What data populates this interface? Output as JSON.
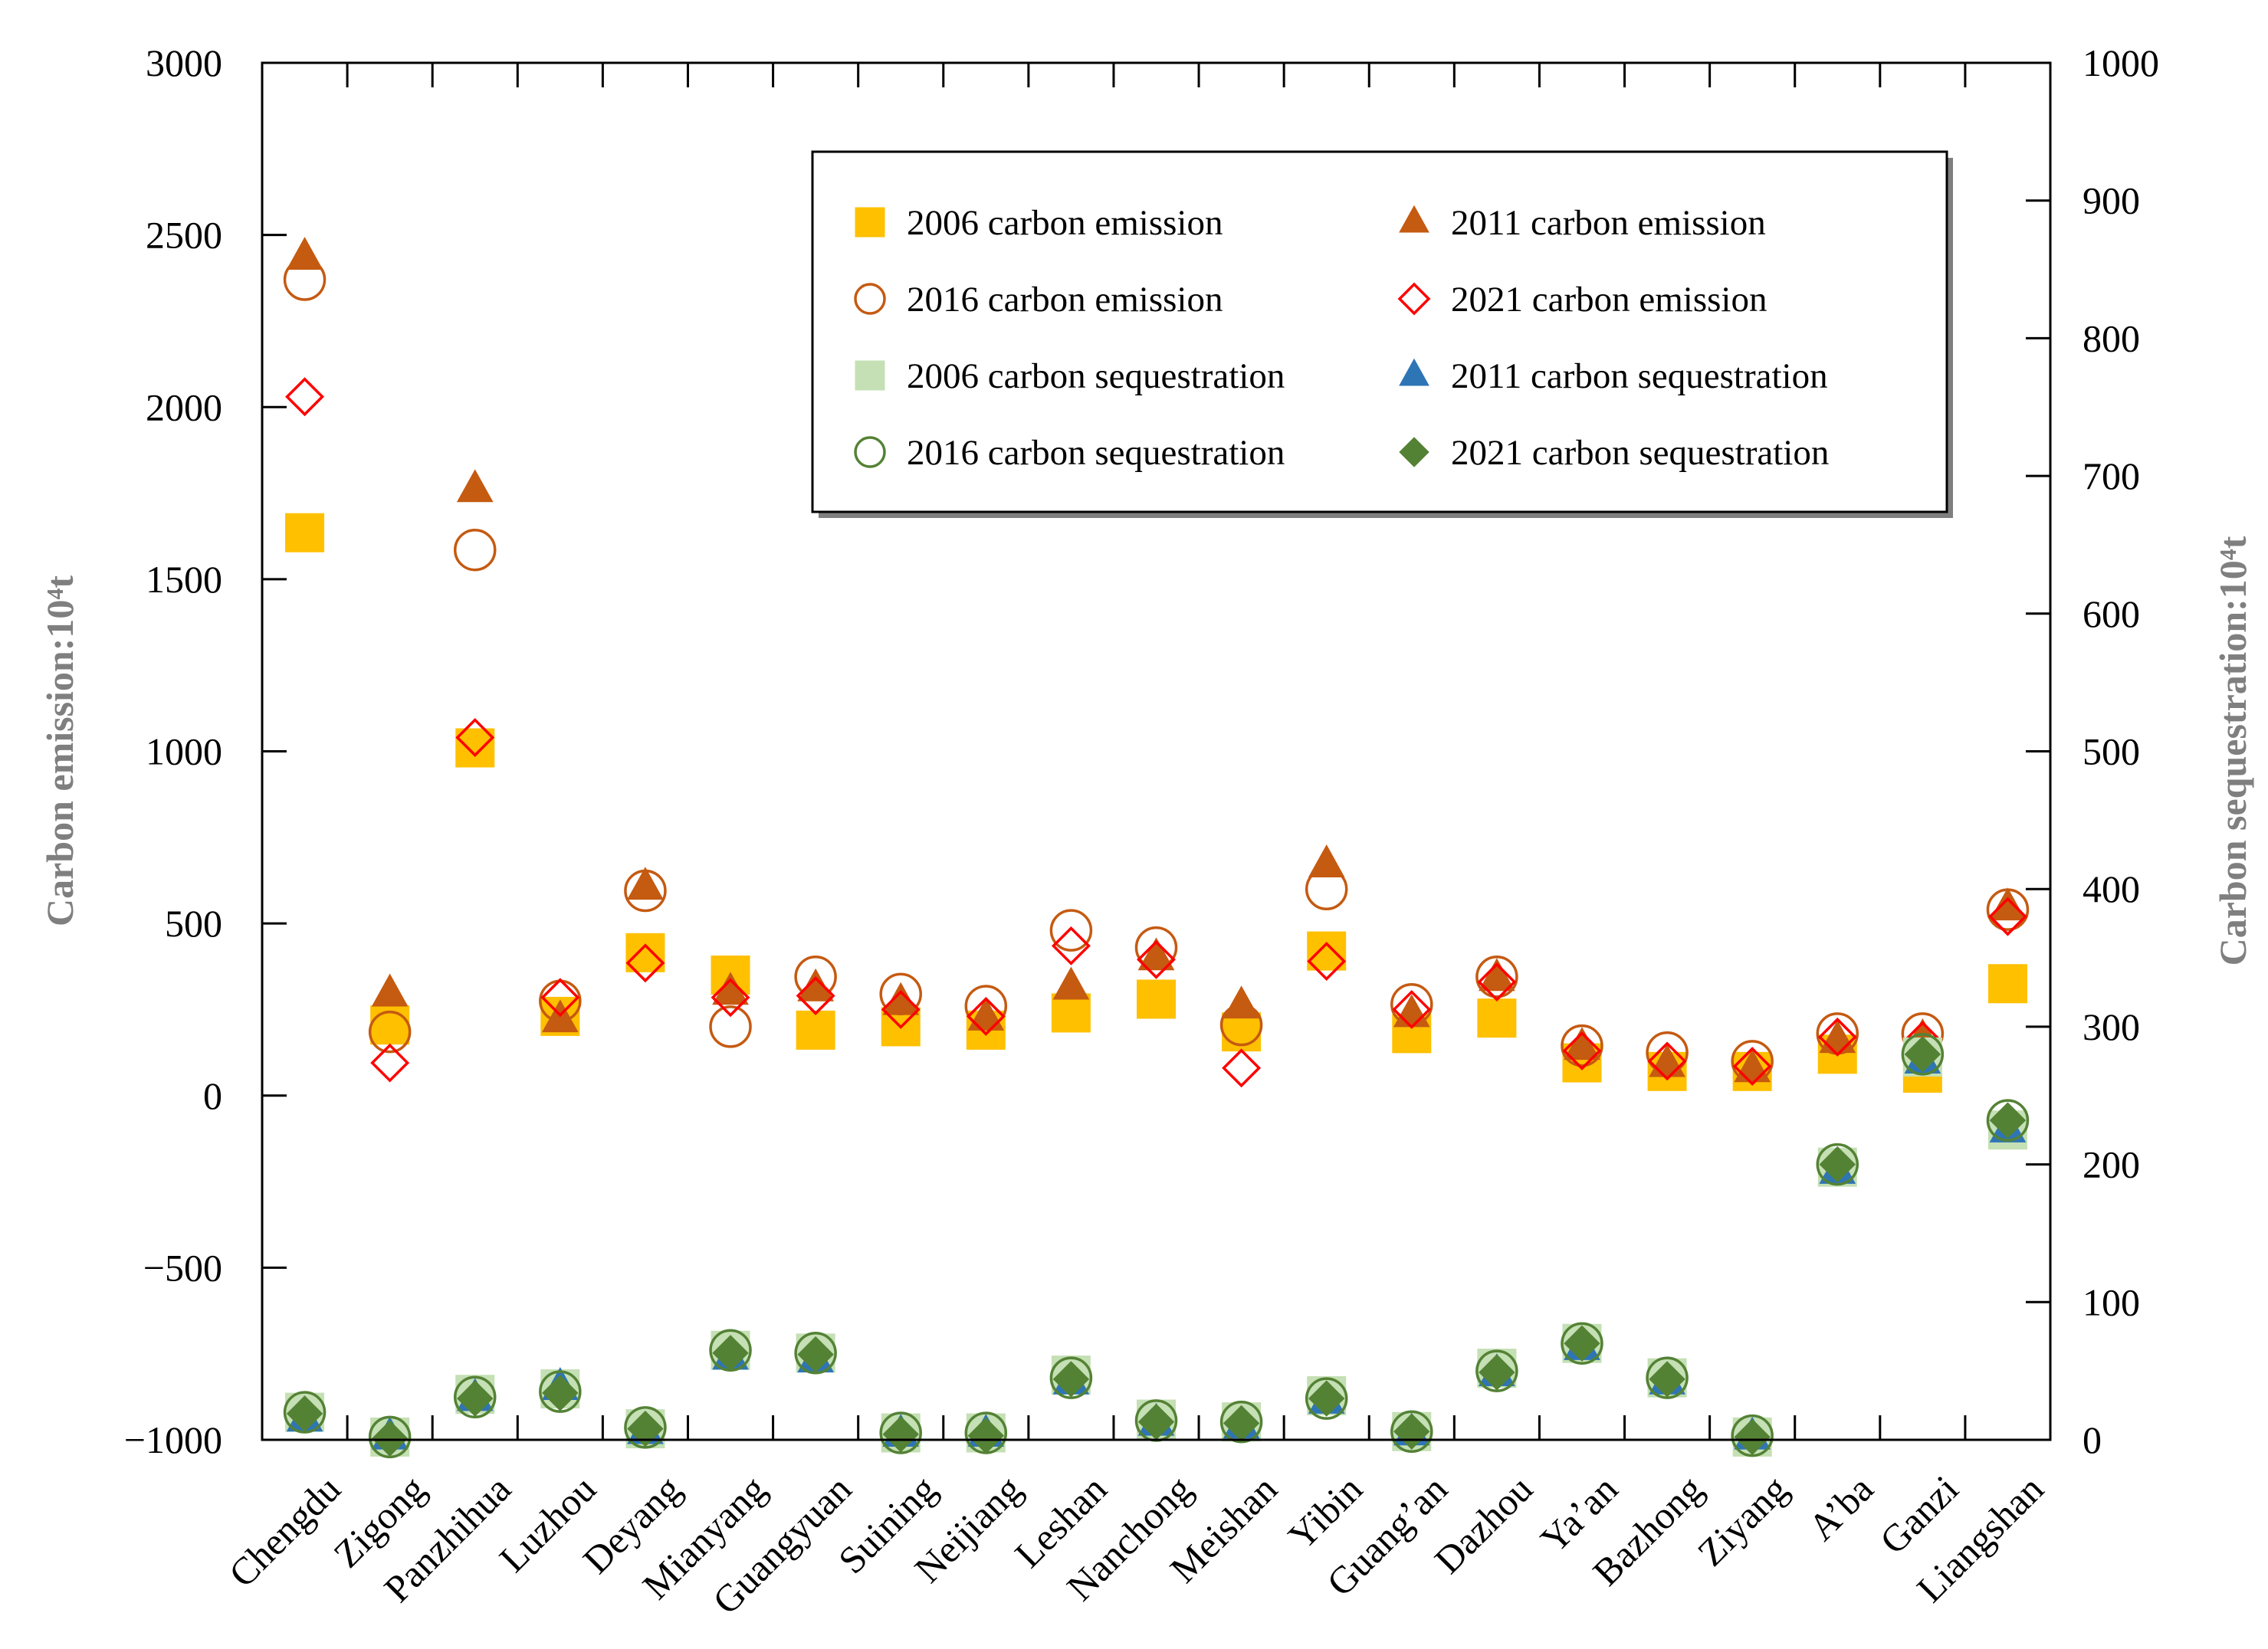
{
  "chart_data": {
    "type": "scatter",
    "categories": [
      "Chengdu",
      "Zigong",
      "Panzhihua",
      "Luzhou",
      "Deyang",
      "Mianyang",
      "Guangyuan",
      "Suining",
      "Neijiang",
      "Leshan",
      "Nanchong",
      "Meishan",
      "Yibin",
      "Guang’an",
      "Dazhou",
      "Ya’an",
      "Bazhong",
      "Ziyang",
      "A’ba",
      "Ganzi",
      "Liangshan"
    ],
    "ylabel": "Carbon emission:10⁴t",
    "y2label": "Carbon sequestration:10⁴t",
    "ylim": [
      -1000,
      3000
    ],
    "y2lim": [
      0,
      1000
    ],
    "yticks": [
      3000,
      2500,
      2000,
      1500,
      1000,
      500,
      0,
      -500,
      -1000
    ],
    "yticklabels": [
      "3000",
      "2500",
      "2000",
      "1500",
      "1000",
      "500",
      "0",
      "−500",
      "−1000"
    ],
    "y2ticks": [
      1000,
      900,
      800,
      700,
      600,
      500,
      400,
      300,
      200,
      100,
      0
    ],
    "y2ticklabels": [
      "1000",
      "900",
      "800",
      "700",
      "600",
      "500",
      "400",
      "300",
      "200",
      "100",
      "0"
    ],
    "grid": false,
    "legend_position": "top-right",
    "series": [
      {
        "name": "2006 carbon emission",
        "axis": "left",
        "marker": "square",
        "color": "#ffc000",
        "filled": true,
        "values": [
          1635,
          205,
          1010,
          230,
          415,
          350,
          190,
          200,
          190,
          240,
          280,
          185,
          420,
          180,
          225,
          95,
          70,
          70,
          120,
          65,
          325
        ]
      },
      {
        "name": "2011 carbon emission",
        "axis": "left",
        "marker": "triangle",
        "color": "#c55a11",
        "filled": true,
        "values": [
          2435,
          295,
          1760,
          220,
          605,
          300,
          310,
          270,
          225,
          315,
          400,
          260,
          670,
          235,
          340,
          140,
          90,
          75,
          160,
          165,
          545
        ]
      },
      {
        "name": "2016 carbon emission",
        "axis": "left",
        "marker": "circle",
        "color": "#c55a11",
        "filled": false,
        "values": [
          2370,
          185,
          1585,
          275,
          595,
          200,
          345,
          295,
          260,
          480,
          430,
          205,
          600,
          265,
          345,
          145,
          125,
          100,
          180,
          180,
          540
        ]
      },
      {
        "name": "2021 carbon emission",
        "axis": "left",
        "marker": "diamond",
        "color": "#ff0000",
        "filled": false,
        "values": [
          2030,
          95,
          1040,
          285,
          385,
          285,
          290,
          250,
          230,
          435,
          395,
          80,
          390,
          250,
          330,
          130,
          100,
          85,
          170,
          160,
          520
        ]
      },
      {
        "name": "2006 carbon sequestration",
        "axis": "right",
        "marker": "square",
        "color": "#c5e0b4",
        "filled": true,
        "values": [
          20,
          2,
          33,
          37,
          8,
          65,
          63,
          5,
          5,
          47,
          15,
          13,
          32,
          6,
          52,
          70,
          45,
          2,
          198,
          278,
          225
        ]
      },
      {
        "name": "2011 carbon sequestration",
        "axis": "right",
        "marker": "triangle",
        "color": "#2e75b6",
        "filled": true,
        "values": [
          15,
          2,
          30,
          38,
          6,
          60,
          58,
          4,
          4,
          42,
          12,
          10,
          28,
          5,
          48,
          67,
          42,
          2,
          195,
          275,
          225
        ]
      },
      {
        "name": "2016 carbon sequestration",
        "axis": "right",
        "marker": "circle",
        "color": "#548235",
        "filled": false,
        "values": [
          20,
          2,
          31,
          35,
          9,
          65,
          63,
          5,
          5,
          45,
          14,
          13,
          30,
          6,
          50,
          70,
          45,
          3,
          200,
          280,
          232
        ]
      },
      {
        "name": "2021 carbon sequestration",
        "axis": "right",
        "marker": "diamond",
        "color": "#548235",
        "filled": true,
        "values": [
          19,
          1,
          30,
          34,
          8,
          63,
          62,
          4,
          3,
          44,
          13,
          12,
          30,
          6,
          49,
          70,
          44,
          2,
          200,
          280,
          232
        ]
      }
    ]
  }
}
